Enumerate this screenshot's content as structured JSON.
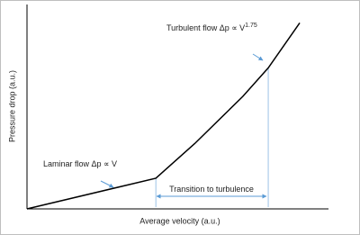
{
  "chart_data": {
    "type": "line",
    "x_label": "Average velocity (a.u.)",
    "y_label": "Pressure drop (a.u.)",
    "x": [
      0,
      4.3,
      5.6,
      7.2,
      8.05,
      9.1
    ],
    "series": [
      {
        "color": "#000000",
        "values": [
          0,
          1.5,
          3.2,
          5.5,
          6.9,
          9.1
        ]
      }
    ],
    "xlim": [
      0,
      10
    ],
    "ylim": [
      0,
      10
    ],
    "annotations": [
      {
        "text": "Laminar flow Δp ∝ V"
      },
      {
        "text": "Turbulent flow Δp ∝ V",
        "superscript": "1.75"
      },
      {
        "text": "Transition to turbulence"
      }
    ]
  }
}
